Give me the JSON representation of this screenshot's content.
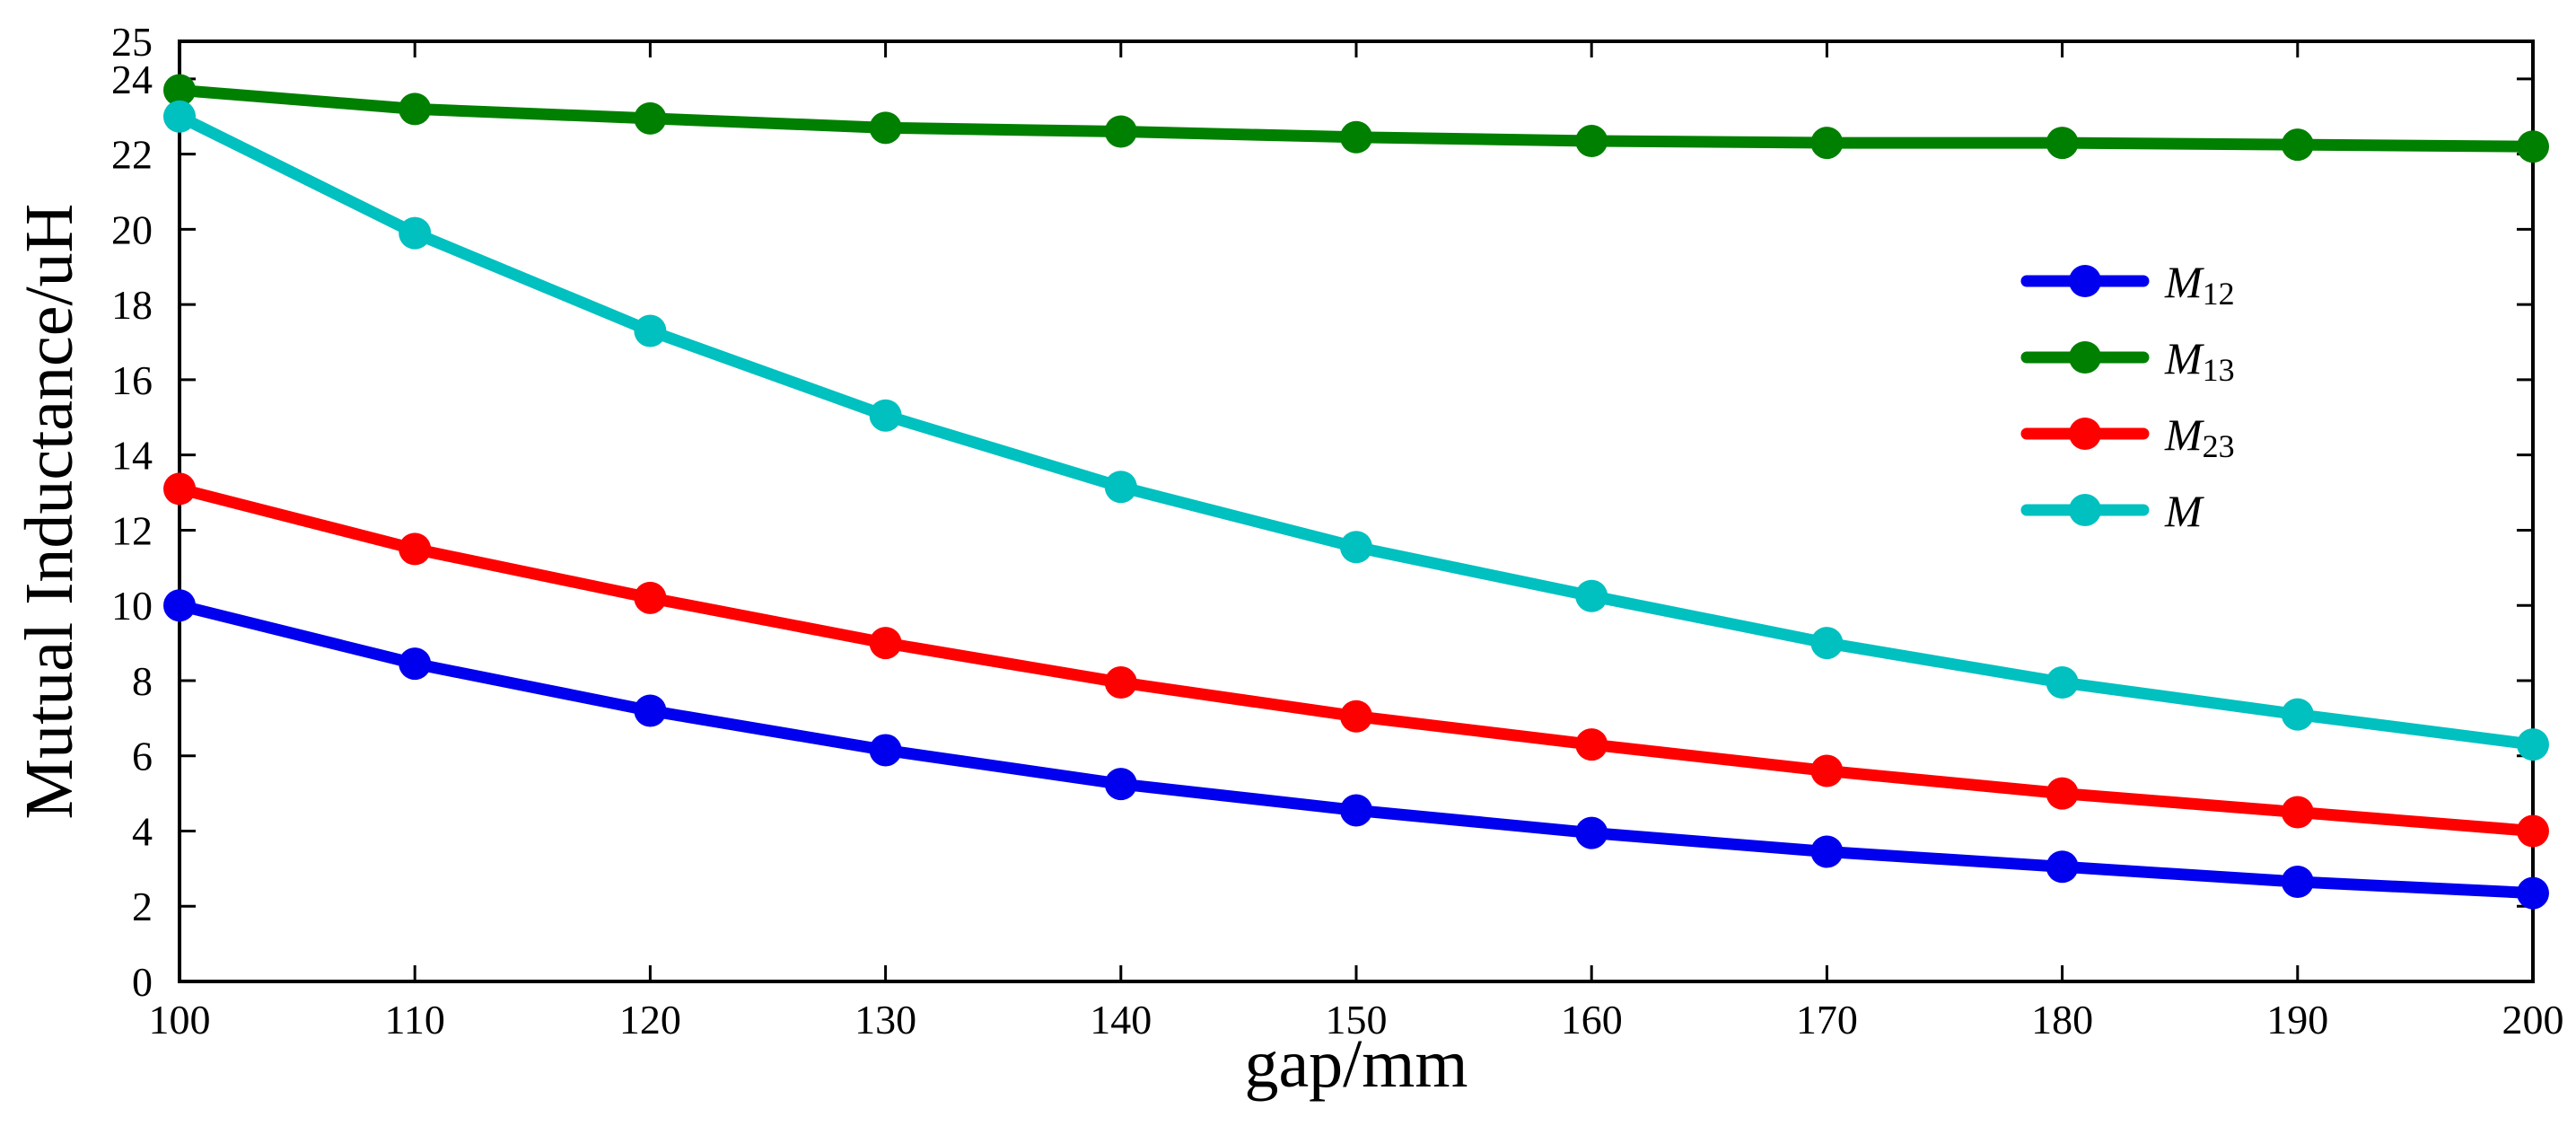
{
  "chart_data": {
    "type": "line",
    "title": "",
    "xlabel": "gap/mm",
    "ylabel": "Mutual Inductance/uH",
    "x": [
      100,
      110,
      120,
      130,
      140,
      150,
      160,
      170,
      180,
      190,
      200
    ],
    "xlim": [
      100,
      200
    ],
    "ylim": [
      0,
      25
    ],
    "xticks": [
      "100",
      "110",
      "120",
      "130",
      "140",
      "150",
      "160",
      "170",
      "180",
      "190",
      "200"
    ],
    "yticks": [
      "0",
      "2",
      "4",
      "6",
      "8",
      "10",
      "12",
      "14",
      "16",
      "18",
      "20",
      "22",
      "24",
      "25"
    ],
    "grid": false,
    "legend_position": "right",
    "series": [
      {
        "name": "M12",
        "label_main": "M",
        "label_sub": "12",
        "color": "#0000ee",
        "values": [
          10.0,
          8.45,
          7.2,
          6.15,
          5.25,
          4.55,
          3.95,
          3.45,
          3.05,
          2.65,
          2.35
        ]
      },
      {
        "name": "M13",
        "label_main": "M",
        "label_sub": "13",
        "color": "#008000",
        "values": [
          23.7,
          23.2,
          22.95,
          22.7,
          22.6,
          22.45,
          22.35,
          22.3,
          22.3,
          22.25,
          22.2
        ]
      },
      {
        "name": "M23",
        "label_main": "M",
        "label_sub": "23",
        "color": "#ff0000",
        "values": [
          13.1,
          11.5,
          10.2,
          9.0,
          7.95,
          7.05,
          6.3,
          5.6,
          5.0,
          4.5,
          4.0
        ]
      },
      {
        "name": "M",
        "label_main": "M",
        "label_sub": "",
        "color": "#00c0c0",
        "values": [
          23.0,
          19.9,
          17.3,
          15.05,
          13.15,
          11.55,
          10.25,
          9.0,
          7.95,
          7.1,
          6.3
        ]
      }
    ]
  }
}
